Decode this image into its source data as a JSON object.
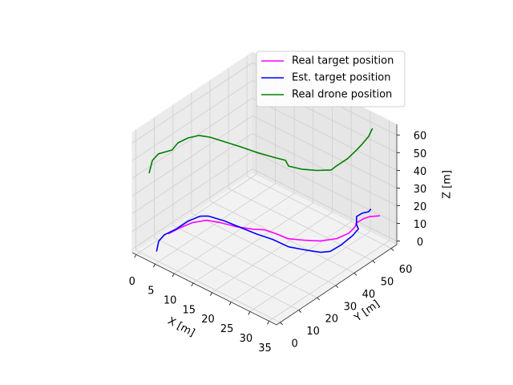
{
  "chart_data": {
    "type": "line3d",
    "xlabel": "X [m]",
    "ylabel": "Y [m]",
    "zlabel": "Z [m]",
    "xlim": [
      -1,
      37
    ],
    "ylim": [
      -2,
      63
    ],
    "zlim": [
      -2,
      66
    ],
    "xticks": [
      0,
      5,
      10,
      15,
      20,
      25,
      30,
      35
    ],
    "yticks": [
      0,
      10,
      20,
      30,
      40,
      50,
      60
    ],
    "zticks": [
      0,
      10,
      20,
      30,
      40,
      50,
      60
    ],
    "grid": true,
    "legend": "upper right",
    "series": [
      {
        "name": "Real target position",
        "color": "#ff00ff",
        "x": [
          1.0,
          1.4,
          2.1,
          3.7,
          6.3,
          9.6,
          12.6,
          14.6,
          17.3,
          20.2,
          22.9,
          25.5,
          27.4,
          28.0,
          27.5,
          27.9,
          29.4,
          30.9,
          33.2
        ],
        "y": [
          13.4,
          19.2,
          24.2,
          28.6,
          30.7,
          32.5,
          35.1,
          37.6,
          38.5,
          39.0,
          42.0,
          45.4,
          50.2,
          55.6,
          60.0,
          59.8,
          60.4,
          61.1,
          61.7
        ],
        "z": [
          0,
          0,
          0,
          0,
          0,
          0,
          0,
          0,
          0,
          0,
          0,
          0,
          0,
          0,
          0,
          2.7,
          6.2,
          8.7,
          11.1
        ]
      },
      {
        "name": "Est. target position",
        "color": "#0000ff",
        "x": [
          3.2,
          1.2,
          0.6,
          1.1,
          1.1,
          1.8,
          3.0,
          6.5,
          10.4,
          14.3,
          17.9,
          22.0,
          25.1,
          28.1,
          29.3,
          29.5,
          29.1,
          28.5,
          28.6,
          28.6,
          29.4,
          30.2,
          30.5
        ],
        "y": [
          2.5,
          7.8,
          12.1,
          17.5,
          24.0,
          29.0,
          30.9,
          32.4,
          33.1,
          33.8,
          35.0,
          35.3,
          37.6,
          40.2,
          42.8,
          48.1,
          55.4,
          59.7,
          58.5,
          58.5,
          59.8,
          61.7,
          62.4
        ],
        "z": [
          0,
          0,
          0,
          0,
          0,
          0,
          0,
          0,
          0,
          0,
          0,
          0,
          0,
          0,
          0,
          0,
          0,
          0,
          3.4,
          8.0,
          9.8,
          10.2,
          11.6
        ]
      },
      {
        "name": "Real drone position",
        "color": "#008000",
        "x": [
          0.9,
          0.5,
          0.5,
          0.9,
          0.9,
          1.3,
          2.0,
          3.9,
          6.6,
          10.4,
          14.2,
          18.0,
          21.0,
          21.8,
          24.1,
          26.7,
          28.6,
          29.0,
          29.4,
          29.0,
          29.4,
          30.2,
          30.9
        ],
        "y": [
          3.2,
          5.8,
          9.1,
          15.6,
          18.8,
          23.4,
          27.9,
          29.9,
          32.5,
          33.1,
          33.8,
          35.1,
          35.7,
          35.7,
          38.3,
          40.9,
          44.8,
          46.8,
          52.0,
          57.8,
          59.8,
          61.7,
          62.4
        ],
        "z": [
          41.3,
          46.3,
          47.7,
          45.8,
          47.6,
          47.6,
          46.6,
          46.3,
          44.7,
          45.6,
          46.1,
          46.5,
          47.5,
          45.1,
          44.0,
          44.3,
          43.9,
          45.2,
          46.1,
          46.6,
          48.8,
          52.7,
          57.6
        ]
      }
    ]
  }
}
